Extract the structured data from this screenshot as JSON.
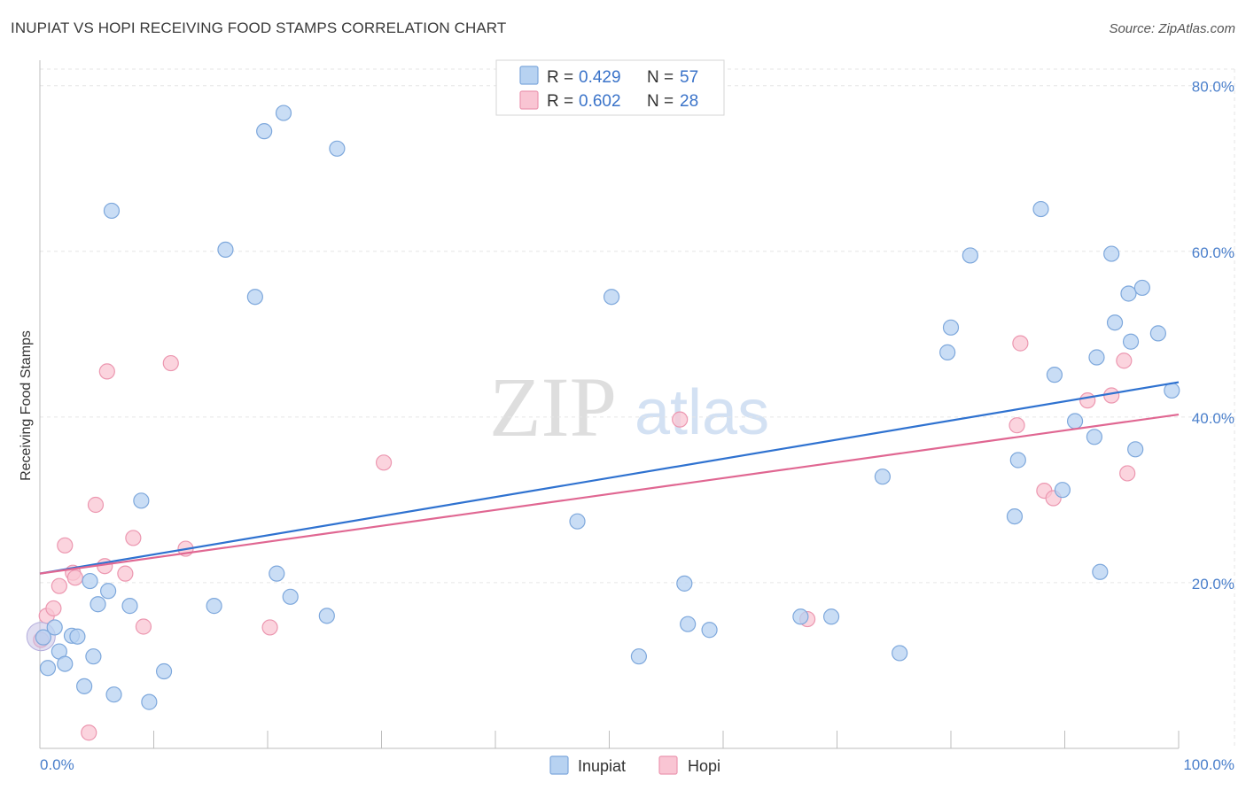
{
  "header": {
    "title": "INUPIAT VS HOPI RECEIVING FOOD STAMPS CORRELATION CHART",
    "source": "Source: ZipAtlas.com"
  },
  "watermark": {
    "zip": "ZIP",
    "atlas": "atlas"
  },
  "legend": {
    "rows": [
      {
        "r_label": "R = ",
        "r_value": "0.429",
        "n_label": "N = ",
        "n_value": "57"
      },
      {
        "r_label": "R = ",
        "r_value": "0.602",
        "n_label": "N = ",
        "n_value": "28"
      }
    ],
    "bottom": [
      "Inupiat",
      "Hopi"
    ]
  },
  "colors": {
    "inupiat_fill": "#b7d2f1",
    "inupiat_stroke": "#7ea8dc",
    "inupiat_line": "#2f72d0",
    "hopi_fill": "#f9c5d3",
    "hopi_stroke": "#ec97b0",
    "hopi_line": "#e06792"
  },
  "chart_data": {
    "type": "scatter",
    "title": "INUPIAT VS HOPI RECEIVING FOOD STAMPS CORRELATION CHART",
    "xlabel": "",
    "ylabel": "Receiving Food Stamps",
    "xlim": [
      0,
      100
    ],
    "ylim": [
      0,
      82
    ],
    "x_tick_labels": [
      "0.0%",
      "100.0%"
    ],
    "y_ticks": [
      20,
      40,
      60,
      80
    ],
    "y_tick_labels": [
      "20.0%",
      "40.0%",
      "60.0%",
      "80.0%"
    ],
    "grid": true,
    "series": [
      {
        "name": "Inupiat",
        "r": 0.429,
        "n": 57,
        "trend": {
          "x": [
            0,
            100
          ],
          "y": [
            21.1,
            44.2
          ]
        },
        "points": [
          [
            0.3,
            13.4
          ],
          [
            0.7,
            9.7
          ],
          [
            1.3,
            14.6
          ],
          [
            1.7,
            11.7
          ],
          [
            2.2,
            10.2
          ],
          [
            2.8,
            13.6
          ],
          [
            3.3,
            13.5
          ],
          [
            3.9,
            7.5
          ],
          [
            4.4,
            20.2
          ],
          [
            4.7,
            11.1
          ],
          [
            5.1,
            17.4
          ],
          [
            6.0,
            19.0
          ],
          [
            6.3,
            64.9
          ],
          [
            6.5,
            6.5
          ],
          [
            7.9,
            17.2
          ],
          [
            8.9,
            29.9
          ],
          [
            9.6,
            5.6
          ],
          [
            10.9,
            9.3
          ],
          [
            15.3,
            17.2
          ],
          [
            16.3,
            60.2
          ],
          [
            18.9,
            54.5
          ],
          [
            19.7,
            74.5
          ],
          [
            20.8,
            21.1
          ],
          [
            21.4,
            76.7
          ],
          [
            22.0,
            18.3
          ],
          [
            25.2,
            16.0
          ],
          [
            26.1,
            72.4
          ],
          [
            47.2,
            27.4
          ],
          [
            50.2,
            54.5
          ],
          [
            52.6,
            11.1
          ],
          [
            56.6,
            19.9
          ],
          [
            56.9,
            15.0
          ],
          [
            58.8,
            14.3
          ],
          [
            66.8,
            15.9
          ],
          [
            69.5,
            15.9
          ],
          [
            74.0,
            32.8
          ],
          [
            75.5,
            11.5
          ],
          [
            79.7,
            47.8
          ],
          [
            80.0,
            50.8
          ],
          [
            81.7,
            59.5
          ],
          [
            85.6,
            28.0
          ],
          [
            85.9,
            34.8
          ],
          [
            87.9,
            65.1
          ],
          [
            89.1,
            45.1
          ],
          [
            89.8,
            31.2
          ],
          [
            90.9,
            39.5
          ],
          [
            92.6,
            37.6
          ],
          [
            92.8,
            47.2
          ],
          [
            93.1,
            21.3
          ],
          [
            94.1,
            59.7
          ],
          [
            94.4,
            51.4
          ],
          [
            95.6,
            54.9
          ],
          [
            95.8,
            49.1
          ],
          [
            96.2,
            36.1
          ],
          [
            96.8,
            55.6
          ],
          [
            98.2,
            50.1
          ],
          [
            99.4,
            43.2
          ]
        ]
      },
      {
        "name": "Hopi",
        "r": 0.602,
        "n": 28,
        "trend": {
          "x": [
            0,
            100
          ],
          "y": [
            21.1,
            40.3
          ]
        },
        "points": [
          [
            0.1,
            13.1
          ],
          [
            0.6,
            16.0
          ],
          [
            1.2,
            16.9
          ],
          [
            1.7,
            19.6
          ],
          [
            2.2,
            24.5
          ],
          [
            2.9,
            21.2
          ],
          [
            3.1,
            20.6
          ],
          [
            4.3,
            1.9
          ],
          [
            4.9,
            29.4
          ],
          [
            5.7,
            22.0
          ],
          [
            5.9,
            45.5
          ],
          [
            7.5,
            21.1
          ],
          [
            8.2,
            25.4
          ],
          [
            9.1,
            14.7
          ],
          [
            11.5,
            46.5
          ],
          [
            12.8,
            24.1
          ],
          [
            20.2,
            14.6
          ],
          [
            30.2,
            34.5
          ],
          [
            56.2,
            39.7
          ],
          [
            67.4,
            15.6
          ],
          [
            85.8,
            39.0
          ],
          [
            86.1,
            48.9
          ],
          [
            88.2,
            31.1
          ],
          [
            89.0,
            30.2
          ],
          [
            92.0,
            42.0
          ],
          [
            94.1,
            42.6
          ],
          [
            95.2,
            46.8
          ],
          [
            95.5,
            33.2
          ]
        ]
      }
    ]
  }
}
